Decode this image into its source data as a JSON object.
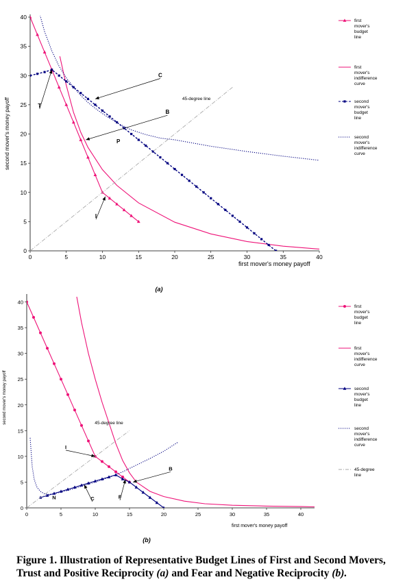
{
  "chart_data": [
    {
      "type": "line",
      "panel_label": "(a)",
      "xlabel": "first mover's money payoff",
      "ylabel": "second mover's money payoff",
      "xlim": [
        0,
        40
      ],
      "ylim": [
        0,
        40
      ],
      "xticks": [
        "0",
        "5",
        "10",
        "15",
        "20",
        "25",
        "30",
        "35",
        "40"
      ],
      "yticks": [
        "0",
        "5",
        "10",
        "15",
        "20",
        "25",
        "30",
        "35",
        "40"
      ],
      "grid": false,
      "legend_position": "right",
      "series": [
        {
          "name": "first mover's budget line",
          "color": "#ee1177",
          "marker": "triangle",
          "x": [
            0,
            1,
            2,
            3,
            4,
            5,
            6,
            7,
            8,
            9,
            10,
            11,
            12,
            13,
            14,
            15
          ],
          "y": [
            40,
            37,
            34,
            31,
            28,
            25,
            22,
            19,
            16,
            13,
            10,
            9,
            8,
            7,
            6,
            5
          ]
        },
        {
          "name": "first mover's indifference curve",
          "color": "#ee1177",
          "x": [
            4.1,
            5,
            6,
            7,
            8,
            10,
            12,
            15,
            20,
            25,
            30,
            35,
            40
          ],
          "y": [
            33.3,
            28.3,
            23.7,
            20.3,
            17.7,
            13.9,
            11.2,
            8.2,
            4.9,
            2.9,
            1.6,
            0.8,
            0.3
          ]
        },
        {
          "name": "second mover's budget line",
          "color": "#000080",
          "marker": "square",
          "x": [
            0,
            1,
            2,
            3,
            4,
            5,
            6,
            7,
            8,
            9,
            10,
            11,
            12,
            13,
            14,
            15,
            16,
            17,
            18,
            19,
            20,
            21,
            22,
            23,
            24,
            25,
            26,
            27,
            28,
            29,
            30,
            31,
            32,
            33,
            34
          ],
          "y": [
            30,
            30.3,
            30.6,
            31,
            30,
            29,
            28,
            27,
            26,
            25,
            24,
            23,
            22,
            21,
            20,
            19,
            18,
            17,
            16,
            15,
            14,
            13,
            12,
            11,
            10,
            9,
            8,
            7,
            6,
            5,
            4,
            3,
            2,
            1,
            0
          ]
        },
        {
          "name": "second mover's indifference curve",
          "color": "#000080",
          "dash": "dotted",
          "x": [
            1,
            2,
            3,
            4,
            5,
            6,
            7,
            8,
            9,
            10,
            12,
            14,
            16,
            18,
            20,
            25,
            30,
            35,
            40
          ],
          "y": [
            42,
            37.5,
            34.2,
            31.6,
            29.6,
            28,
            26.6,
            25.4,
            24.4,
            23.5,
            21.9,
            20.7,
            19.9,
            19.3,
            19,
            17.9,
            17,
            16.2,
            15.5
          ]
        },
        {
          "name": "45-degree line",
          "color": "#aaaaaa",
          "dash": "dashdot",
          "x": [
            0,
            28
          ],
          "y": [
            0,
            28
          ]
        }
      ],
      "annotations": [
        {
          "text": "C",
          "x": 9,
          "y": 26,
          "label_x": 18,
          "label_y": 29.5
        },
        {
          "text": "B",
          "x": 7.7,
          "y": 19,
          "label_x": 19,
          "label_y": 23.2
        },
        {
          "text": "T",
          "x": 3,
          "y": 31,
          "label_x": 1.3,
          "label_y": 24.3
        },
        {
          "text": "P",
          "label_x": 12.2,
          "label_y": 18.2
        },
        {
          "text": "I",
          "x": 10.4,
          "y": 9.3,
          "label_x": 9.1,
          "label_y": 5.4
        },
        {
          "text": "45-degree line",
          "label_x": 23,
          "label_y": 25.6
        }
      ]
    },
    {
      "type": "line",
      "panel_label": "(b)",
      "xlabel": "first mover's money payoff",
      "ylabel": "second mover's money payoff",
      "xlim": [
        0,
        42
      ],
      "ylim": [
        0,
        41
      ],
      "xticks": [
        "0",
        "5",
        "10",
        "15",
        "20",
        "25",
        "30",
        "35",
        "40"
      ],
      "yticks": [
        "0",
        "5",
        "10",
        "15",
        "20",
        "25",
        "30",
        "35",
        "40"
      ],
      "grid": false,
      "legend_position": "right",
      "series": [
        {
          "name": "first mover's budget line",
          "color": "#ee1177",
          "marker": "circle",
          "x": [
            0,
            1,
            2,
            3,
            4,
            5,
            6,
            7,
            8,
            9,
            10,
            11,
            12,
            13,
            14,
            15
          ],
          "y": [
            40,
            37,
            34,
            31,
            28,
            25,
            22,
            19,
            16,
            13,
            10,
            9,
            8,
            7,
            6,
            5
          ]
        },
        {
          "name": "first mover's indifference curve",
          "color": "#ee1177",
          "x": [
            7.3,
            8,
            9,
            10,
            11,
            12,
            13,
            14,
            15,
            16,
            18,
            20,
            23,
            26,
            30,
            35,
            40,
            42
          ],
          "y": [
            41,
            36,
            30,
            25,
            20.5,
            16.5,
            12.5,
            9.2,
            6.8,
            5,
            3.2,
            2.2,
            1.3,
            0.8,
            0.5,
            0.35,
            0.25,
            0.2
          ]
        },
        {
          "name": "second mover's budget line",
          "color": "#000080",
          "marker": "triangle",
          "x": [
            2,
            3,
            4,
            5,
            6,
            7,
            8,
            9,
            10,
            11,
            12,
            13,
            14,
            15,
            16,
            17,
            18,
            19,
            20
          ],
          "y": [
            2,
            2.4,
            2.8,
            3.2,
            3.6,
            4,
            4.4,
            4.8,
            5.2,
            5.6,
            6,
            6.4,
            5.6,
            5,
            4,
            3,
            2,
            1,
            0
          ]
        },
        {
          "name": "second mover's indifference curve",
          "color": "#000080",
          "dash": "dotted",
          "x": [
            0.5,
            0.8,
            1.1,
            1.5,
            2,
            2.5,
            3,
            4,
            5,
            6,
            8,
            10,
            12,
            14,
            16,
            18,
            20,
            22
          ],
          "y": [
            13.6,
            8,
            5.5,
            4,
            3.2,
            2.8,
            2.6,
            2.7,
            3.1,
            3.4,
            4.2,
            5,
            5.9,
            7,
            8.3,
            9.6,
            11,
            12.7
          ]
        },
        {
          "name": "45-degree line",
          "color": "#aaaaaa",
          "dash": "dashdot",
          "x": [
            0,
            15
          ],
          "y": [
            0,
            15
          ]
        }
      ],
      "annotations": [
        {
          "text": "I",
          "x": 10,
          "y": 10,
          "label_x": 5.7,
          "label_y": 11.2
        },
        {
          "text": "B",
          "x": 15.5,
          "y": 5,
          "label_x": 21,
          "label_y": 7
        },
        {
          "text": "F",
          "x": 14.4,
          "y": 5.5,
          "label_x": 13.6,
          "label_y": 1.5
        },
        {
          "text": "C",
          "x": 8.4,
          "y": 4.5,
          "label_x": 9.6,
          "label_y": 1.2
        },
        {
          "text": "N",
          "label_x": 4,
          "label_y": 1.4
        },
        {
          "text": "45-degree line",
          "label_x": 12,
          "label_y": 16
        }
      ]
    }
  ],
  "caption": {
    "figure_label": "Figure 1.",
    "text_1": "Illustration of  Representative Budget Lines of First and Second Movers, Trust and Positive Reciprocity",
    "italic_1": "(a)",
    "text_2": "and Fear and Negative Reciprocity",
    "italic_2": "(b)."
  }
}
